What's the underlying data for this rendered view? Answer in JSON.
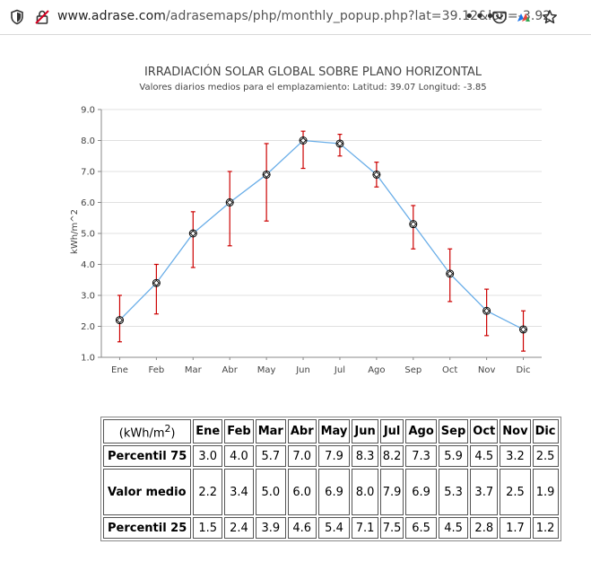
{
  "browser": {
    "url_host": "www.adrase.com",
    "url_path": "/adrasemaps/php/monthly_popup.php?lat=39.12&lon=-3.92",
    "more_label": "•••"
  },
  "chart_data": {
    "type": "line",
    "title": "IRRADIACIÓN SOLAR GLOBAL SOBRE PLANO HORIZONTAL",
    "subtitle": "Valores diarios medios para el emplazamiento: Latitud: 39.07 Longitud: -3.85",
    "ylabel": "kWh/m^2",
    "xlabel": "",
    "categories": [
      "Ene",
      "Feb",
      "Mar",
      "Abr",
      "May",
      "Jun",
      "Jul",
      "Ago",
      "Sep",
      "Oct",
      "Nov",
      "Dic"
    ],
    "ylim": [
      1.0,
      9.0
    ],
    "yticks": [
      "1.0",
      "2.0",
      "3.0",
      "4.0",
      "5.0",
      "6.0",
      "7.0",
      "8.0",
      "9.0"
    ],
    "grid": true,
    "series": [
      {
        "values": [
          2.2,
          3.4,
          5.0,
          6.0,
          6.9,
          8.0,
          7.9,
          6.9,
          5.3,
          3.7,
          2.5,
          1.9
        ]
      }
    ],
    "error_bars": {
      "upper": [
        3.0,
        4.0,
        5.7,
        7.0,
        7.9,
        8.3,
        8.2,
        7.3,
        5.9,
        4.5,
        3.2,
        2.5
      ],
      "lower": [
        1.5,
        2.4,
        3.9,
        4.6,
        5.4,
        7.1,
        7.5,
        6.5,
        4.5,
        2.8,
        1.7,
        1.2
      ]
    },
    "colors": {
      "line": "#6aaee8",
      "error": "#cc0000",
      "marker": "#000000",
      "grid": "#e0e0e0",
      "axis": "#888888"
    }
  },
  "table": {
    "unit_label": "(kWh/m",
    "unit_sup": "2",
    "unit_close": ")",
    "months": [
      "Ene",
      "Feb",
      "Mar",
      "Abr",
      "May",
      "Jun",
      "Jul",
      "Ago",
      "Sep",
      "Oct",
      "Nov",
      "Dic"
    ],
    "rows": [
      {
        "label": "Percentil 75",
        "values": [
          "3.0",
          "4.0",
          "5.7",
          "7.0",
          "7.9",
          "8.3",
          "8.2",
          "7.3",
          "5.9",
          "4.5",
          "3.2",
          "2.5"
        ]
      },
      {
        "label": "Valor medio",
        "values": [
          "2.2",
          "3.4",
          "5.0",
          "6.0",
          "6.9",
          "8.0",
          "7.9",
          "6.9",
          "5.3",
          "3.7",
          "2.5",
          "1.9"
        ]
      },
      {
        "label": "Percentil 25",
        "values": [
          "1.5",
          "2.4",
          "3.9",
          "4.6",
          "5.4",
          "7.1",
          "7.5",
          "6.5",
          "4.5",
          "2.8",
          "1.7",
          "1.2"
        ]
      }
    ]
  }
}
